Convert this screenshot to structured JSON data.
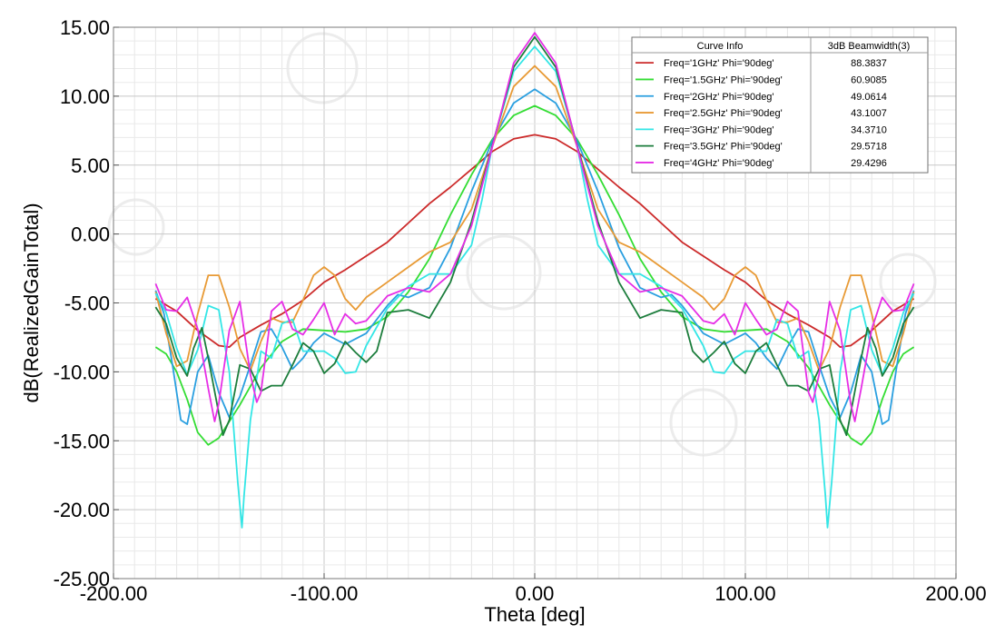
{
  "chart_data": {
    "type": "line",
    "title": "",
    "xlabel": "Theta [deg]",
    "ylabel": "dB(RealizedGainTotal)",
    "xlim": [
      -200,
      200
    ],
    "ylim": [
      -25,
      15
    ],
    "grid": true,
    "legend_position": "top-right",
    "x_ticks": [
      "-200.00",
      "-100.00",
      "0.00",
      "100.00",
      "200.00"
    ],
    "y_ticks": [
      "15.00",
      "10.00",
      "5.00",
      "0.00",
      "-5.00",
      "-10.00",
      "-15.00",
      "-20.00",
      "-25.00"
    ],
    "legend_header": [
      "Curve Info",
      "3dB Beamwidth(3)"
    ],
    "series": [
      {
        "name": "Freq='1GHz' Phi='90deg'",
        "beamwidth": "88.3837",
        "color": "#cc2a2a",
        "points": [
          [
            0,
            7.2
          ],
          [
            10,
            6.9
          ],
          [
            20,
            6.0
          ],
          [
            30,
            4.7
          ],
          [
            40,
            3.4
          ],
          [
            50,
            2.2
          ],
          [
            60,
            0.8
          ],
          [
            70,
            -0.6
          ],
          [
            80,
            -1.6
          ],
          [
            90,
            -2.6
          ],
          [
            100,
            -3.5
          ],
          [
            110,
            -4.8
          ],
          [
            120,
            -5.8
          ],
          [
            130,
            -6.6
          ],
          [
            140,
            -7.5
          ],
          [
            145,
            -8.2
          ],
          [
            150,
            -8.1
          ],
          [
            160,
            -7.0
          ],
          [
            170,
            -5.6
          ],
          [
            180,
            -4.7
          ]
        ]
      },
      {
        "name": "Freq='1.5GHz' Phi='90deg'",
        "beamwidth": "60.9085",
        "color": "#33dd33",
        "points": [
          [
            0,
            9.3
          ],
          [
            10,
            8.6
          ],
          [
            20,
            6.9
          ],
          [
            30,
            4.3
          ],
          [
            40,
            1.4
          ],
          [
            50,
            -1.8
          ],
          [
            60,
            -4.2
          ],
          [
            70,
            -6.0
          ],
          [
            80,
            -6.9
          ],
          [
            90,
            -7.1
          ],
          [
            100,
            -7.0
          ],
          [
            110,
            -6.9
          ],
          [
            120,
            -7.8
          ],
          [
            130,
            -9.7
          ],
          [
            140,
            -12.4
          ],
          [
            150,
            -14.8
          ],
          [
            155,
            -15.3
          ],
          [
            160,
            -14.4
          ],
          [
            165,
            -12.0
          ],
          [
            170,
            -10.0
          ],
          [
            175,
            -8.7
          ],
          [
            180,
            -8.2
          ]
        ]
      },
      {
        "name": "Freq='2GHz' Phi='90deg'",
        "beamwidth": "49.0614",
        "color": "#2a9fe0",
        "points": [
          [
            0,
            10.5
          ],
          [
            10,
            9.5
          ],
          [
            20,
            6.8
          ],
          [
            30,
            3.1
          ],
          [
            40,
            -1.0
          ],
          [
            50,
            -3.9
          ],
          [
            60,
            -4.6
          ],
          [
            65,
            -4.4
          ],
          [
            70,
            -5.2
          ],
          [
            80,
            -7.2
          ],
          [
            90,
            -8.0
          ],
          [
            100,
            -7.2
          ],
          [
            105,
            -7.9
          ],
          [
            110,
            -9.0
          ],
          [
            115,
            -9.8
          ],
          [
            120,
            -8.2
          ],
          [
            125,
            -6.9
          ],
          [
            130,
            -7.1
          ],
          [
            135,
            -9.5
          ],
          [
            140,
            -11.8
          ],
          [
            145,
            -13.3
          ],
          [
            150,
            -11.5
          ],
          [
            155,
            -8.8
          ],
          [
            160,
            -10.0
          ],
          [
            165,
            -13.8
          ],
          [
            168,
            -13.5
          ],
          [
            172,
            -9.5
          ],
          [
            176,
            -5.8
          ],
          [
            180,
            -4.1
          ]
        ]
      },
      {
        "name": "Freq='2.5GHz' Phi='90deg'",
        "beamwidth": "43.1007",
        "color": "#e89a35",
        "points": [
          [
            0,
            12.2
          ],
          [
            10,
            10.7
          ],
          [
            20,
            6.4
          ],
          [
            30,
            1.8
          ],
          [
            40,
            -0.6
          ],
          [
            50,
            -1.3
          ],
          [
            60,
            -2.4
          ],
          [
            70,
            -3.5
          ],
          [
            80,
            -4.6
          ],
          [
            85,
            -5.5
          ],
          [
            90,
            -4.7
          ],
          [
            95,
            -3.0
          ],
          [
            100,
            -2.4
          ],
          [
            105,
            -3.0
          ],
          [
            110,
            -4.8
          ],
          [
            115,
            -6.4
          ],
          [
            120,
            -6.4
          ],
          [
            125,
            -6.1
          ],
          [
            130,
            -7.8
          ],
          [
            135,
            -9.9
          ],
          [
            140,
            -8.3
          ],
          [
            145,
            -5.3
          ],
          [
            150,
            -3.0
          ],
          [
            155,
            -3.0
          ],
          [
            160,
            -5.8
          ],
          [
            165,
            -9.2
          ],
          [
            170,
            -9.6
          ],
          [
            175,
            -7.2
          ],
          [
            180,
            -4.2
          ]
        ]
      },
      {
        "name": "Freq='3GHz' Phi='90deg'",
        "beamwidth": "34.3710",
        "color": "#33e6e6",
        "points": [
          [
            0,
            13.6
          ],
          [
            10,
            11.8
          ],
          [
            20,
            6.5
          ],
          [
            25,
            2.5
          ],
          [
            30,
            -0.8
          ],
          [
            40,
            -2.9
          ],
          [
            50,
            -2.9
          ],
          [
            60,
            -3.8
          ],
          [
            70,
            -5.4
          ],
          [
            80,
            -8.1
          ],
          [
            85,
            -10.0
          ],
          [
            90,
            -10.1
          ],
          [
            95,
            -9.0
          ],
          [
            100,
            -8.5
          ],
          [
            110,
            -8.5
          ],
          [
            115,
            -6.2
          ],
          [
            120,
            -6.5
          ],
          [
            125,
            -9.0
          ],
          [
            130,
            -8.5
          ],
          [
            135,
            -13.5
          ],
          [
            138,
            -19.0
          ],
          [
            139,
            -21.3
          ],
          [
            141,
            -18.0
          ],
          [
            145,
            -10.0
          ],
          [
            150,
            -5.5
          ],
          [
            155,
            -5.2
          ],
          [
            160,
            -8.4
          ],
          [
            165,
            -10.2
          ],
          [
            170,
            -8.3
          ],
          [
            175,
            -5.7
          ],
          [
            180,
            -4.3
          ]
        ]
      },
      {
        "name": "Freq='3.5GHz' Phi='90deg'",
        "beamwidth": "29.5718",
        "color": "#1c7d3c",
        "points": [
          [
            0,
            14.3
          ],
          [
            10,
            12.1
          ],
          [
            20,
            6.5
          ],
          [
            30,
            0.9
          ],
          [
            40,
            -3.5
          ],
          [
            50,
            -6.1
          ],
          [
            60,
            -5.5
          ],
          [
            70,
            -5.7
          ],
          [
            75,
            -8.5
          ],
          [
            80,
            -9.3
          ],
          [
            85,
            -8.6
          ],
          [
            90,
            -7.8
          ],
          [
            95,
            -9.4
          ],
          [
            100,
            -10.1
          ],
          [
            105,
            -8.5
          ],
          [
            110,
            -7.9
          ],
          [
            115,
            -9.5
          ],
          [
            120,
            -11.0
          ],
          [
            125,
            -11.0
          ],
          [
            130,
            -11.4
          ],
          [
            135,
            -9.8
          ],
          [
            140,
            -9.5
          ],
          [
            145,
            -13.5
          ],
          [
            148,
            -14.6
          ],
          [
            150,
            -13.0
          ],
          [
            155,
            -9.0
          ],
          [
            158,
            -6.8
          ],
          [
            162,
            -8.3
          ],
          [
            165,
            -10.3
          ],
          [
            170,
            -9.0
          ],
          [
            175,
            -6.5
          ],
          [
            180,
            -5.3
          ]
        ]
      },
      {
        "name": "Freq='4GHz' Phi='90deg'",
        "beamwidth": "29.4296",
        "color": "#e62ee6",
        "points": [
          [
            0,
            14.6
          ],
          [
            10,
            12.4
          ],
          [
            20,
            6.4
          ],
          [
            30,
            0.6
          ],
          [
            40,
            -2.9
          ],
          [
            50,
            -4.2
          ],
          [
            60,
            -3.9
          ],
          [
            70,
            -4.5
          ],
          [
            80,
            -6.3
          ],
          [
            85,
            -6.5
          ],
          [
            90,
            -5.8
          ],
          [
            95,
            -7.3
          ],
          [
            100,
            -5.0
          ],
          [
            105,
            -6.2
          ],
          [
            110,
            -7.3
          ],
          [
            115,
            -6.9
          ],
          [
            120,
            -4.9
          ],
          [
            125,
            -5.6
          ],
          [
            130,
            -11.5
          ],
          [
            132,
            -12.2
          ],
          [
            135,
            -10.2
          ],
          [
            140,
            -4.9
          ],
          [
            145,
            -7.0
          ],
          [
            150,
            -12.3
          ],
          [
            152,
            -13.6
          ],
          [
            155,
            -11.2
          ],
          [
            160,
            -6.9
          ],
          [
            165,
            -4.6
          ],
          [
            170,
            -5.6
          ],
          [
            175,
            -5.5
          ],
          [
            180,
            -3.6
          ]
        ]
      }
    ]
  }
}
